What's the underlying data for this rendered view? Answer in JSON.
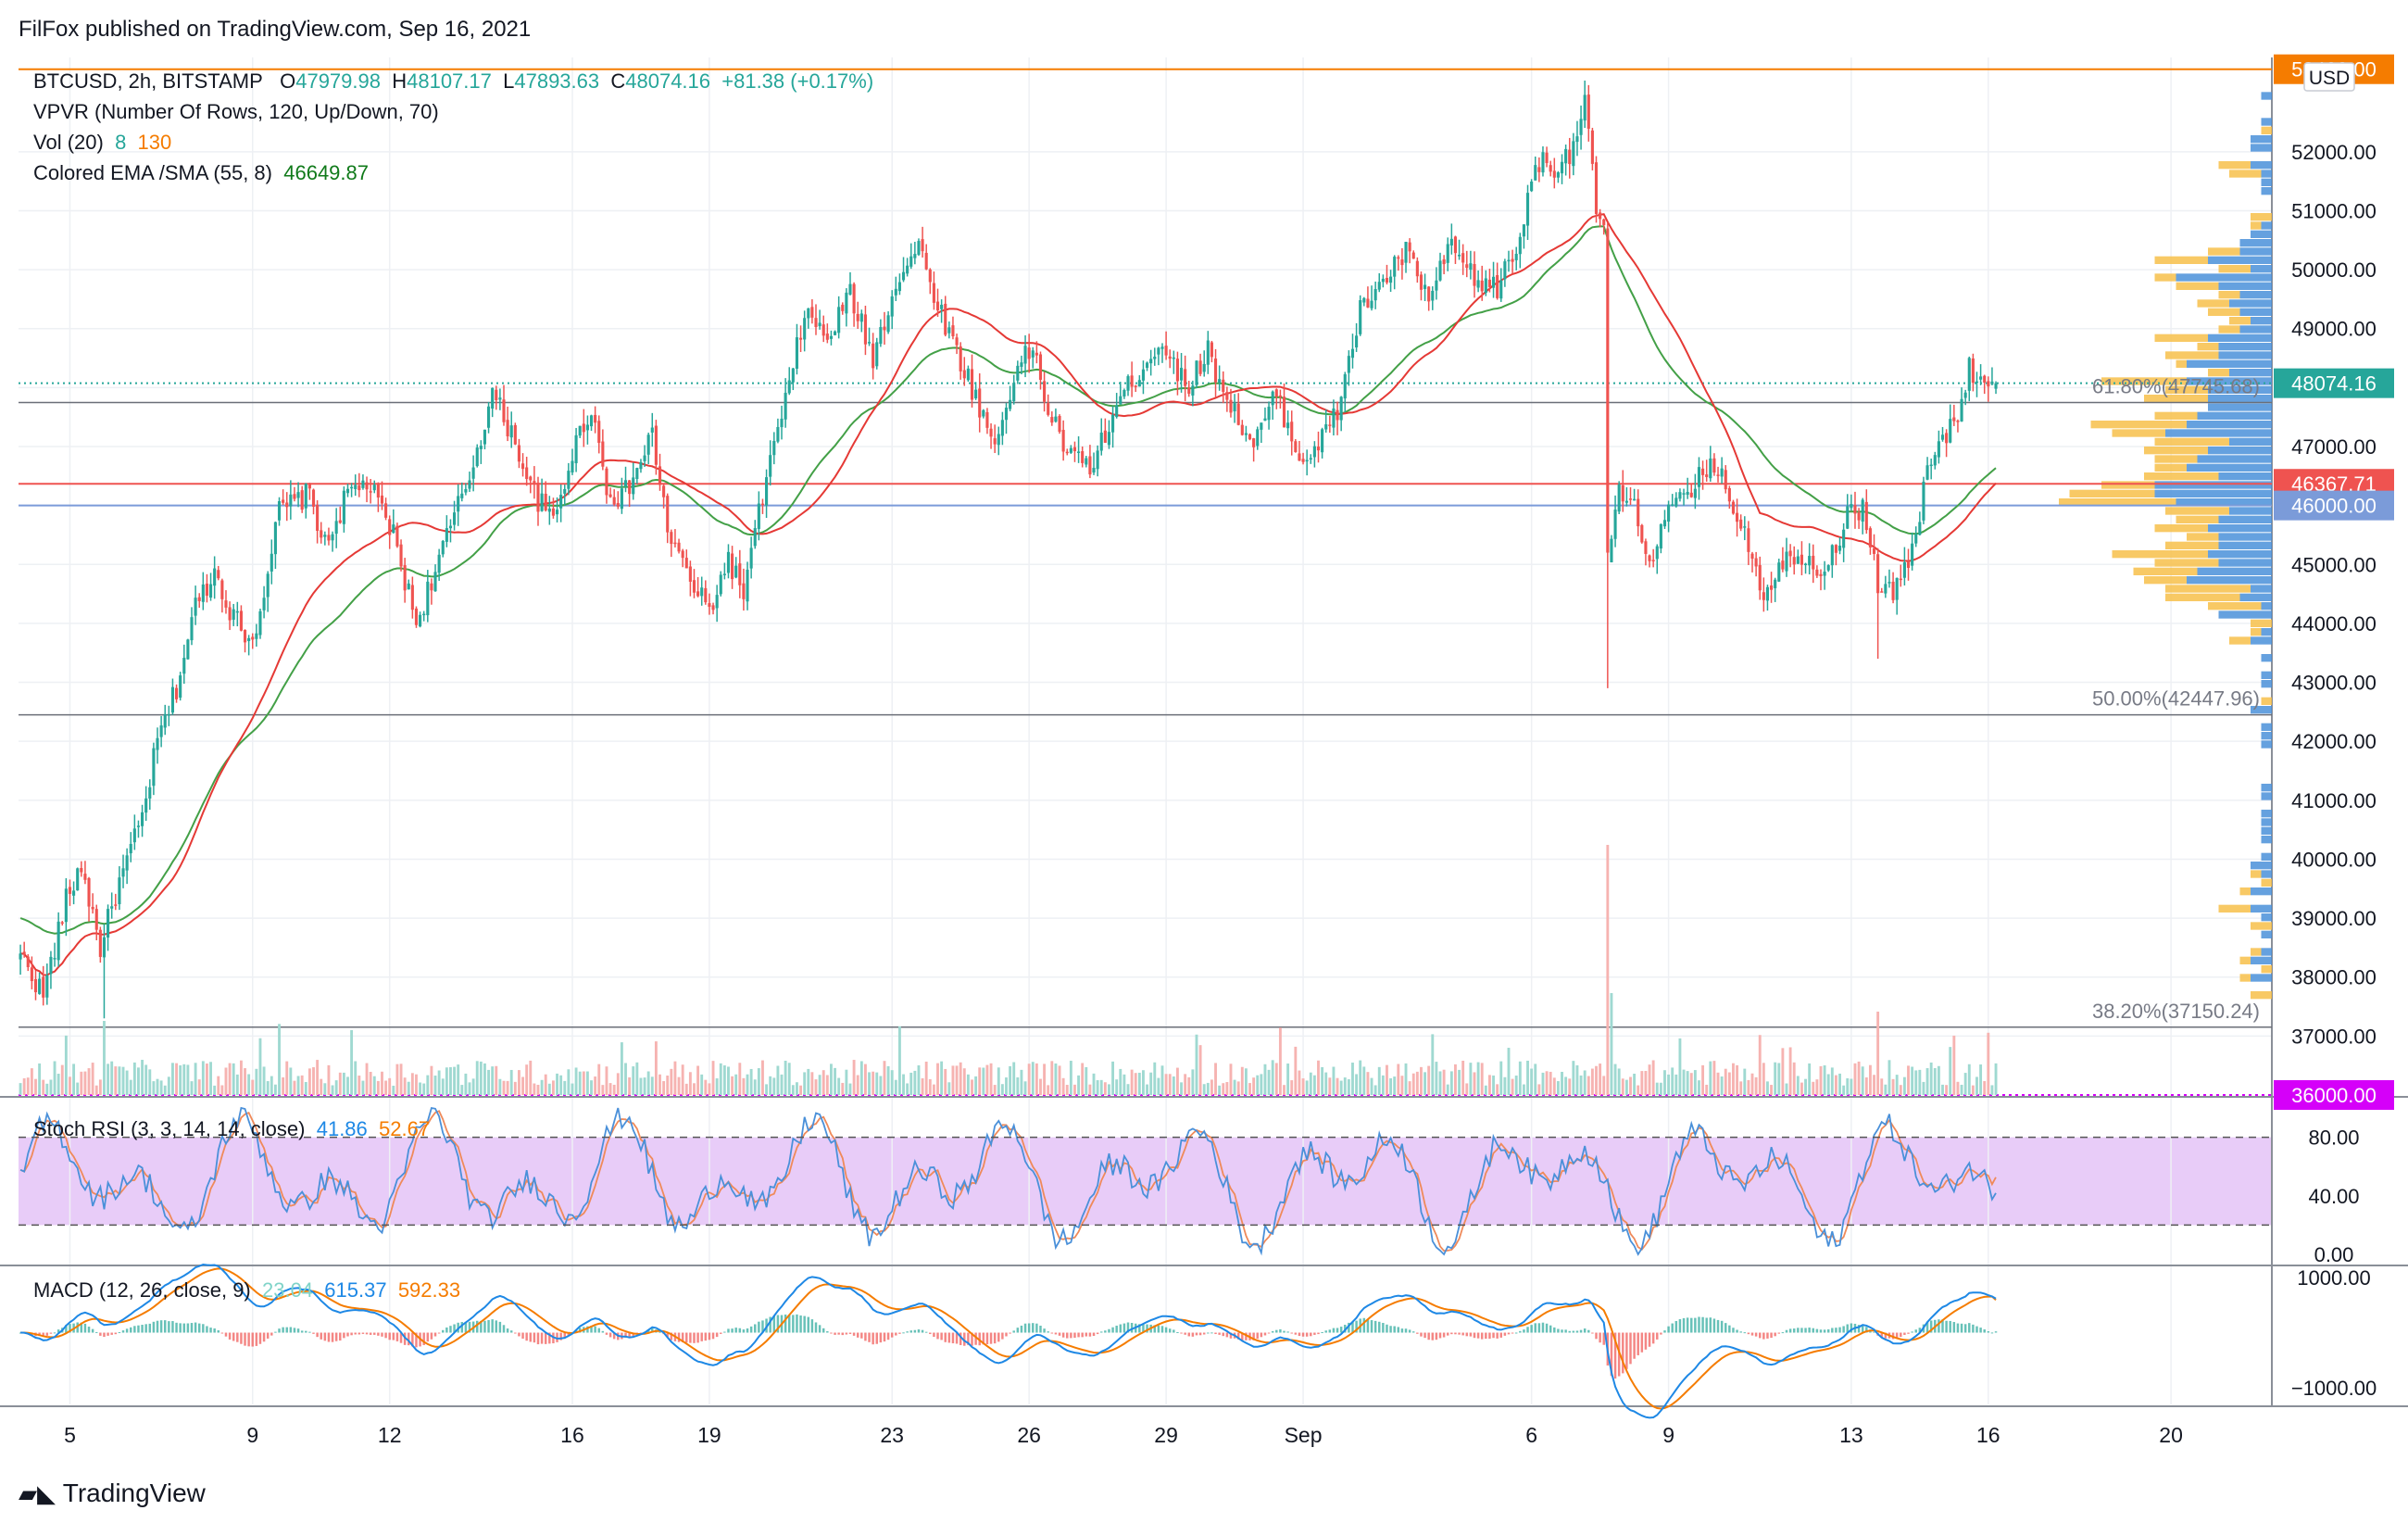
{
  "header": {
    "published": "FilFox published on TradingView.com, Sep 16, 2021",
    "symbol": "BTCUSD, 2h, BITSTAMP",
    "open_label": "O",
    "open": "47979.98",
    "high_label": "H",
    "high": "48107.17",
    "low_label": "L",
    "low": "47893.63",
    "close_label": "C",
    "close": "48074.16",
    "change": "+81.38 (+0.17%)"
  },
  "indicators": {
    "vpvr": "VPVR (Number Of Rows, 120, Up/Down, 70)",
    "vol_label": "Vol (20)",
    "vol_a": "8",
    "vol_b": "130",
    "ema_label": "Colored EMA /SMA (55, 8)",
    "ema_value": "46649.87",
    "stoch_label": "Stoch RSI (3, 3, 14, 14, close)",
    "stoch_k": "41.86",
    "stoch_d": "52.67",
    "macd_label": "MACD (12, 26, close, 9)",
    "macd_hist": "23.04",
    "macd_line": "615.37",
    "macd_signal": "592.33"
  },
  "branding": {
    "name": "TradingView"
  },
  "currency": "USD",
  "colors": {
    "up": "#26a69a",
    "down": "#ef5350",
    "ema": "#43a047",
    "sma": "#e53935",
    "vpvr_up": "#4a90d9",
    "vpvr_down": "#f7c04a",
    "stoch_k": "#4a90d9",
    "stoch_d": "#ef8a5a",
    "stoch_band": "#e8ccf8",
    "macd_line": "#1e88e5",
    "macd_signal": "#f57c00",
    "hline_orange": "#f57c00",
    "hline_red": "#ef5350",
    "hline_blue": "#7b9bd9",
    "hline_magenta": "#d500f9"
  },
  "chart_data": [
    {
      "type": "candlestick",
      "name": "BTCUSD 2h price",
      "ylim": [
        36000,
        53600
      ],
      "y_ticks": [
        "52000.00",
        "51000.00",
        "50000.00",
        "49000.00",
        "48000.00",
        "47000.00",
        "46000.00",
        "45000.00",
        "44000.00",
        "43000.00",
        "42000.00",
        "41000.00",
        "40000.00",
        "39000.00",
        "38000.00",
        "37000.00"
      ],
      "x_ticks": [
        {
          "label": "5",
          "index": 13
        },
        {
          "label": "9",
          "index": 61
        },
        {
          "label": "12",
          "index": 97
        },
        {
          "label": "16",
          "index": 145
        },
        {
          "label": "19",
          "index": 181
        },
        {
          "label": "23",
          "index": 229
        },
        {
          "label": "26",
          "index": 265
        },
        {
          "label": "29",
          "index": 301
        },
        {
          "label": "Sep",
          "index": 337
        },
        {
          "label": "6",
          "index": 397
        },
        {
          "label": "9",
          "index": 433
        },
        {
          "label": "13",
          "index": 481
        },
        {
          "label": "16",
          "index": 517
        },
        {
          "label": "20",
          "index": 565
        }
      ],
      "bar_count": 520,
      "projected_bars": 72,
      "anchors": [
        [
          0,
          38400
        ],
        [
          6,
          37700
        ],
        [
          12,
          39300
        ],
        [
          16,
          39900
        ],
        [
          21,
          38500
        ],
        [
          25,
          39400
        ],
        [
          32,
          40700
        ],
        [
          36,
          42000
        ],
        [
          41,
          42900
        ],
        [
          46,
          44300
        ],
        [
          51,
          44900
        ],
        [
          56,
          44100
        ],
        [
          61,
          43700
        ],
        [
          64,
          44600
        ],
        [
          68,
          45900
        ],
        [
          76,
          46200
        ],
        [
          80,
          45300
        ],
        [
          86,
          46200
        ],
        [
          91,
          46400
        ],
        [
          98,
          45500
        ],
        [
          104,
          44000
        ],
        [
          110,
          45100
        ],
        [
          118,
          46500
        ],
        [
          124,
          47900
        ],
        [
          130,
          47100
        ],
        [
          134,
          46300
        ],
        [
          140,
          45700
        ],
        [
          145,
          46900
        ],
        [
          150,
          47700
        ],
        [
          154,
          46300
        ],
        [
          158,
          46100
        ],
        [
          162,
          46600
        ],
        [
          166,
          47200
        ],
        [
          170,
          45600
        ],
        [
          176,
          44700
        ],
        [
          181,
          44200
        ],
        [
          186,
          45100
        ],
        [
          190,
          44500
        ],
        [
          196,
          46500
        ],
        [
          202,
          48000
        ],
        [
          206,
          49300
        ],
        [
          212,
          48800
        ],
        [
          218,
          49600
        ],
        [
          224,
          48500
        ],
        [
          230,
          49800
        ],
        [
          236,
          50400
        ],
        [
          240,
          49600
        ],
        [
          246,
          48600
        ],
        [
          250,
          48000
        ],
        [
          256,
          47000
        ],
        [
          261,
          48200
        ],
        [
          266,
          48700
        ],
        [
          270,
          47600
        ],
        [
          276,
          46800
        ],
        [
          282,
          46700
        ],
        [
          288,
          47700
        ],
        [
          294,
          48300
        ],
        [
          300,
          48800
        ],
        [
          306,
          48000
        ],
        [
          312,
          48600
        ],
        [
          318,
          47700
        ],
        [
          324,
          47000
        ],
        [
          330,
          47900
        ],
        [
          336,
          46800
        ],
        [
          341,
          47000
        ],
        [
          346,
          47600
        ],
        [
          352,
          49300
        ],
        [
          358,
          49800
        ],
        [
          364,
          50300
        ],
        [
          370,
          49500
        ],
        [
          376,
          50400
        ],
        [
          382,
          49800
        ],
        [
          388,
          49700
        ],
        [
          394,
          50500
        ],
        [
          398,
          51900
        ],
        [
          402,
          51700
        ],
        [
          407,
          52000
        ],
        [
          411,
          52800
        ],
        [
          414,
          51000
        ],
        [
          416,
          50800
        ],
        [
          417,
          45000
        ],
        [
          420,
          46200
        ],
        [
          424,
          45900
        ],
        [
          428,
          45100
        ],
        [
          434,
          46000
        ],
        [
          438,
          46100
        ],
        [
          444,
          46800
        ],
        [
          448,
          46300
        ],
        [
          454,
          45400
        ],
        [
          458,
          44500
        ],
        [
          462,
          45000
        ],
        [
          468,
          45200
        ],
        [
          474,
          44900
        ],
        [
          480,
          45800
        ],
        [
          484,
          46000
        ],
        [
          488,
          44700
        ],
        [
          492,
          44500
        ],
        [
          496,
          45000
        ],
        [
          502,
          46800
        ],
        [
          508,
          47400
        ],
        [
          512,
          48300
        ],
        [
          519,
          48074
        ]
      ],
      "last": {
        "open": 47979.98,
        "high": 48107.17,
        "low": 47893.63,
        "close": 48074.16
      },
      "price_tags": [
        {
          "value": 53400,
          "label": "53400.00",
          "color": "#f57c00"
        },
        {
          "value": 48074.16,
          "label": "48074.16",
          "color": "#26a69a"
        },
        {
          "value": 46367.71,
          "label": "46367.71",
          "color": "#ef5350"
        },
        {
          "value": 46000,
          "label": "46000.00",
          "color": "#7b9bd9"
        },
        {
          "value": 36000,
          "label": "36000.00",
          "color": "#d500f9"
        }
      ],
      "fib_levels": [
        {
          "label": "61.80%(47745.68)",
          "value": 47745.68
        },
        {
          "label": "50.00%(42447.96)",
          "value": 42447.96
        },
        {
          "label": "38.20%(37150.24)",
          "value": 37150.24
        }
      ]
    },
    {
      "type": "bar",
      "name": "Vol (20)",
      "note": "volume bars drawn as relative magnitudes at the bottom of the price pane"
    },
    {
      "type": "line",
      "name": "Stoch RSI (3, 3, 14, 14, close)",
      "ylim": [
        0,
        100
      ],
      "y_ticks": [
        "80.00",
        "40.00",
        "0.00"
      ],
      "bands": [
        20,
        80
      ],
      "last": {
        "k": 41.86,
        "d": 52.67
      }
    },
    {
      "type": "line",
      "name": "MACD (12, 26, close, 9)",
      "ylim": [
        -1300,
        1200
      ],
      "y_ticks": [
        "1000.00",
        "−1000.00"
      ],
      "last": {
        "histogram": 23.04,
        "macd": 615.37,
        "signal": 592.33
      }
    }
  ]
}
